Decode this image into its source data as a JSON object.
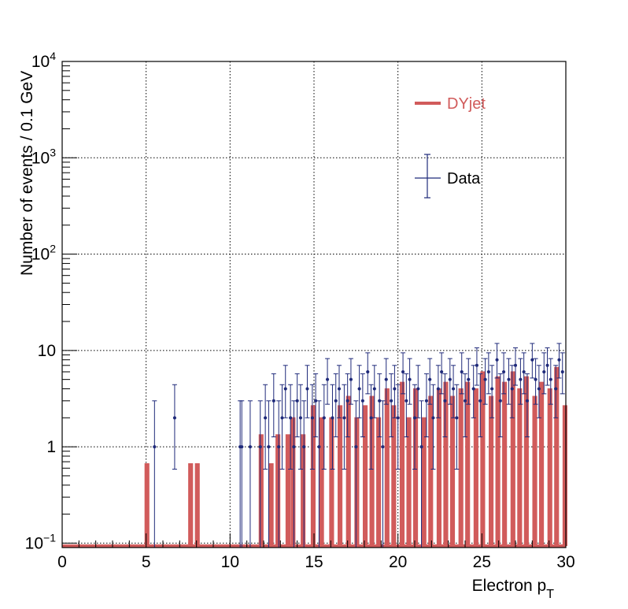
{
  "chart_data": {
    "type": "histogram",
    "xlabel": "Electron p",
    "xlabel_sub": "T",
    "ylabel": "Number of events / 0.1 GeV",
    "xlim": [
      0,
      30
    ],
    "ylim": [
      0.09,
      10000
    ],
    "log_y": true,
    "grid": true,
    "x_ticks": [
      0,
      5,
      10,
      15,
      20,
      25,
      30
    ],
    "x_tick_labels": [
      "0",
      "5",
      "10",
      "15",
      "20",
      "25",
      "30"
    ],
    "y_ticks": [
      {
        "value": 0.1,
        "base": "10",
        "exp": "−1"
      },
      {
        "value": 1,
        "base": "1",
        "exp": ""
      },
      {
        "value": 10,
        "base": "10",
        "exp": ""
      },
      {
        "value": 100,
        "base": "10",
        "exp": "2"
      },
      {
        "value": 1000,
        "base": "10",
        "exp": "3"
      },
      {
        "value": 10000,
        "base": "10",
        "exp": "4"
      }
    ],
    "legend": [
      {
        "label": "DYjet",
        "color": "#d15b5b",
        "style": "line"
      },
      {
        "label": "Data",
        "color": "#1f2a7a",
        "style": "errorbar"
      }
    ],
    "colors": {
      "mc": "#d15b5b",
      "data": "#1f2a7a"
    },
    "series": [
      {
        "name": "DYjet",
        "x": [
          5.0,
          7.6,
          8.0,
          11.8,
          12.4,
          12.8,
          13.4,
          13.7,
          14.3,
          14.9,
          15.4,
          16.0,
          16.5,
          17.0,
          17.5,
          18.0,
          18.4,
          18.8,
          19.3,
          19.7,
          20.2,
          20.6,
          21.0,
          21.5,
          21.9,
          22.4,
          22.8,
          23.2,
          23.7,
          24.1,
          24.6,
          25.0,
          25.5,
          25.9,
          26.3,
          26.8,
          27.2,
          27.6,
          28.1,
          28.5,
          29.0,
          29.4,
          29.9
        ],
        "y": [
          0.65,
          0.65,
          0.65,
          1.3,
          0.65,
          1.3,
          1.3,
          1.95,
          1.3,
          2.6,
          1.95,
          1.95,
          2.6,
          3.25,
          1.95,
          2.6,
          3.25,
          1.95,
          3.9,
          2.6,
          4.55,
          1.95,
          3.9,
          1.95,
          3.25,
          3.9,
          4.55,
          3.25,
          3.9,
          4.55,
          3.9,
          5.85,
          3.25,
          5.2,
          4.55,
          5.85,
          3.9,
          5.2,
          3.25,
          4.55,
          3.9,
          6.5,
          2.6
        ]
      },
      {
        "name": "Data",
        "x": [
          5.5,
          6.7,
          10.6,
          10.7,
          11.2,
          11.8,
          12.1,
          12.3,
          12.6,
          12.9,
          13.1,
          13.3,
          13.6,
          13.8,
          14.0,
          14.2,
          14.4,
          14.6,
          14.9,
          15.1,
          15.3,
          15.6,
          15.8,
          16.1,
          16.3,
          16.5,
          16.8,
          17.0,
          17.2,
          17.5,
          17.7,
          17.9,
          18.2,
          18.4,
          18.6,
          18.9,
          19.1,
          19.3,
          19.6,
          19.8,
          20.0,
          20.3,
          20.5,
          20.7,
          21.0,
          21.2,
          21.4,
          21.7,
          21.9,
          22.1,
          22.4,
          22.6,
          22.8,
          23.1,
          23.3,
          23.5,
          23.8,
          24.0,
          24.2,
          24.5,
          24.7,
          24.9,
          25.2,
          25.4,
          25.6,
          25.9,
          26.1,
          26.3,
          26.6,
          26.8,
          27.0,
          27.3,
          27.5,
          27.7,
          28.0,
          28.2,
          28.4,
          28.7,
          28.9,
          29.1,
          29.4,
          29.6,
          29.8
        ],
        "y": [
          1,
          2,
          1,
          1,
          1,
          1,
          2,
          1,
          3,
          1,
          2,
          4,
          2,
          1,
          3,
          2,
          1,
          4,
          2,
          3,
          1,
          2,
          5,
          2,
          3,
          4,
          2,
          3,
          5,
          1,
          4,
          3,
          6,
          2,
          4,
          3,
          1,
          5,
          3,
          4,
          2,
          6,
          3,
          5,
          2,
          4,
          1,
          3,
          5,
          2,
          4,
          6,
          3,
          5,
          4,
          2,
          6,
          3,
          5,
          4,
          7,
          3,
          5,
          6,
          4,
          8,
          3,
          6,
          5,
          4,
          7,
          5,
          6,
          3,
          8,
          5,
          4,
          6,
          7,
          5,
          4,
          8,
          6
        ]
      }
    ]
  }
}
